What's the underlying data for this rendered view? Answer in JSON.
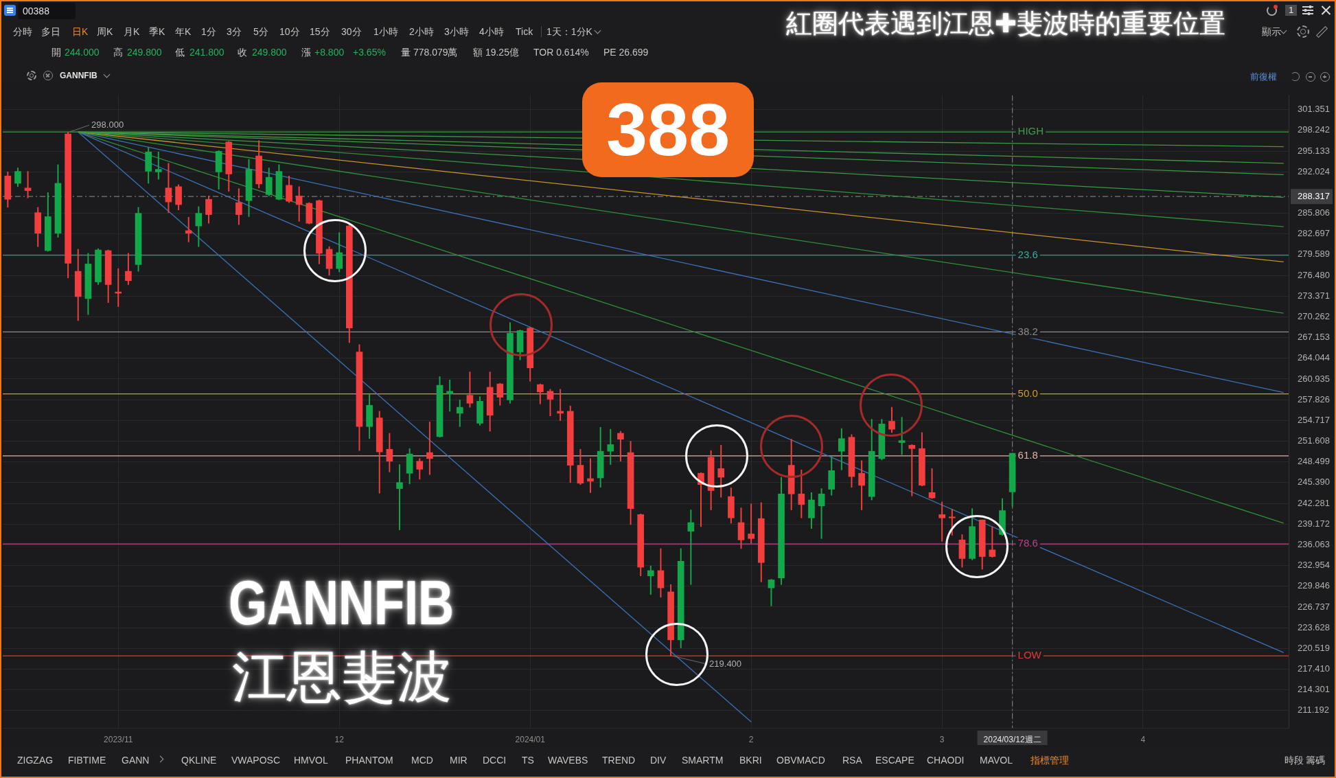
{
  "chart_data": {
    "type": "candlestick",
    "title": "388",
    "subtitle": "紅圈代表遇到江恩✚斐波時的重要位置",
    "categories": [
      null,
      null,
      null,
      null,
      null,
      null,
      null,
      null,
      null,
      null,
      null,
      "2023/11",
      null,
      null,
      null,
      null,
      null,
      null,
      null,
      null,
      null,
      null,
      null,
      null,
      null,
      null,
      null,
      null,
      null,
      null,
      null,
      null,
      null,
      "12",
      null,
      null,
      null,
      null,
      null,
      null,
      null,
      null,
      null,
      null,
      null,
      null,
      null,
      null,
      null,
      null,
      null,
      null,
      "2024/01",
      null,
      null,
      null,
      null,
      null,
      null,
      null,
      null,
      null,
      null,
      null,
      null,
      null,
      null,
      null,
      null,
      null,
      null,
      null,
      null,
      null,
      "2",
      null,
      null,
      null,
      null,
      null,
      null,
      null,
      null,
      null,
      null,
      null,
      null,
      null,
      null,
      null,
      null,
      null,
      null,
      "3",
      null,
      null,
      null,
      null,
      null,
      null,
      "2024/03/12週二",
      null,
      null,
      null,
      null,
      null,
      null,
      null,
      null,
      null,
      null,
      null,
      null,
      "4",
      null,
      null,
      null,
      null,
      null,
      null,
      null,
      null,
      null,
      null,
      null,
      null,
      null,
      null
    ],
    "ohlc": [
      [
        291.4,
        292.0,
        286.7,
        287.9
      ],
      [
        290.3,
        292.6,
        289.8,
        292.1
      ],
      [
        289.6,
        292.1,
        288.1,
        289.2
      ],
      [
        285.9,
        286.7,
        280.8,
        282.8
      ],
      [
        280.2,
        288.9,
        280.1,
        285.3
      ],
      [
        282.8,
        293.1,
        282.2,
        290.3
      ],
      [
        297.7,
        298.0,
        276.1,
        278.3
      ],
      [
        277.1,
        280.4,
        269.7,
        273.3
      ],
      [
        273.0,
        279.8,
        270.6,
        278.2
      ],
      [
        275.5,
        280.5,
        275.1,
        280.3
      ],
      [
        280.2,
        280.3,
        272.4,
        275.1
      ],
      [
        274.0,
        277.5,
        271.8,
        273.8
      ],
      [
        277.1,
        279.8,
        275.1,
        275.7
      ],
      [
        278.1,
        286.7,
        277.1,
        285.8
      ],
      [
        292.1,
        295.7,
        290.3,
        295.0
      ],
      [
        292.0,
        295.0,
        290.9,
        292.4
      ],
      [
        289.6,
        293.3,
        285.9,
        287.5
      ],
      [
        289.8,
        290.1,
        286.3,
        287.1
      ],
      [
        283.2,
        285.2,
        281.5,
        282.8
      ],
      [
        283.9,
        286.8,
        280.8,
        285.8
      ],
      [
        287.9,
        288.4,
        284.3,
        285.6
      ],
      [
        292.0,
        295.2,
        289.4,
        295.1
      ],
      [
        296.5,
        296.6,
        289.1,
        291.7
      ],
      [
        287.4,
        289.5,
        284.1,
        285.6
      ],
      [
        287.7,
        293.9,
        285.3,
        292.4
      ],
      [
        294.4,
        296.7,
        289.6,
        290.2
      ],
      [
        288.6,
        292.6,
        288.4,
        291.2
      ],
      [
        287.9,
        293.1,
        287.8,
        292.1
      ],
      [
        290.0,
        291.4,
        287.4,
        287.6
      ],
      [
        288.4,
        289.8,
        284.6,
        287.1
      ],
      [
        287.3,
        287.4,
        284.2,
        284.3
      ],
      [
        287.7,
        287.8,
        278.2,
        279.8
      ],
      [
        280.4,
        280.8,
        276.5,
        277.5
      ],
      [
        277.5,
        282.9,
        277.0,
        279.9
      ],
      [
        283.9,
        284.1,
        266.4,
        268.6
      ],
      [
        265.0,
        266.1,
        250.2,
        253.8
      ],
      [
        253.8,
        258.6,
        252.0,
        257.0
      ],
      [
        255.1,
        256.1,
        243.8,
        250.0
      ],
      [
        250.4,
        252.8,
        247.0,
        248.6
      ],
      [
        244.5,
        248.1,
        238.3,
        245.4
      ],
      [
        246.8,
        250.5,
        245.2,
        249.7
      ],
      [
        248.6,
        249.0,
        245.9,
        247.4
      ],
      [
        249.9,
        254.5,
        246.6,
        249.0
      ],
      [
        252.3,
        261.3,
        252.2,
        260.0
      ],
      [
        258.7,
        260.8,
        256.1,
        259.1
      ],
      [
        255.8,
        257.8,
        253.8,
        256.7
      ],
      [
        258.5,
        262.0,
        256.7,
        257.3
      ],
      [
        254.3,
        258.3,
        254.0,
        257.6
      ],
      [
        259.7,
        262.0,
        253.1,
        255.5
      ],
      [
        260.2,
        260.3,
        257.0,
        258.2
      ],
      [
        257.8,
        269.4,
        257.3,
        267.8
      ],
      [
        265.0,
        268.3,
        263.8,
        268.2
      ],
      [
        268.6,
        268.7,
        260.6,
        262.6
      ],
      [
        260.1,
        260.2,
        257.2,
        259.0
      ],
      [
        259.1,
        259.4,
        255.4,
        257.9
      ],
      [
        256.1,
        259.4,
        254.7,
        255.8
      ],
      [
        256.1,
        256.9,
        245.4,
        248.0
      ],
      [
        248.0,
        250.4,
        245.1,
        245.3
      ],
      [
        246.0,
        249.0,
        243.9,
        245.6
      ],
      [
        246.1,
        253.7,
        244.7,
        250.1
      ],
      [
        250.1,
        253.4,
        248.1,
        251.1
      ],
      [
        252.8,
        253.1,
        248.6,
        251.9
      ],
      [
        249.9,
        251.6,
        239.1,
        241.5
      ],
      [
        240.6,
        240.7,
        231.4,
        232.7
      ],
      [
        231.4,
        232.9,
        228.6,
        232.2
      ],
      [
        232.2,
        235.5,
        228.2,
        229.6
      ],
      [
        229.0,
        230.1,
        219.4,
        221.8
      ],
      [
        221.8,
        235.5,
        220.6,
        233.6
      ],
      [
        238.1,
        241.3,
        230.1,
        239.4
      ],
      [
        246.8,
        246.9,
        238.8,
        245.1
      ],
      [
        249.2,
        250.2,
        241.3,
        244.2
      ],
      [
        247.5,
        251.0,
        243.2,
        246.2
      ],
      [
        243.3,
        244.6,
        239.3,
        240.1
      ],
      [
        239.4,
        241.6,
        235.5,
        236.8
      ],
      [
        237.7,
        242.2,
        236.3,
        237.0
      ],
      [
        240.0,
        242.4,
        230.5,
        233.4
      ],
      [
        229.6,
        230.9,
        226.9,
        230.8
      ],
      [
        231.1,
        246.2,
        230.1,
        243.7
      ],
      [
        248.0,
        251.9,
        241.3,
        243.7
      ],
      [
        243.7,
        247.3,
        240.1,
        242.1
      ],
      [
        240.1,
        243.9,
        238.5,
        242.8
      ],
      [
        241.9,
        244.5,
        237.0,
        243.7
      ],
      [
        244.4,
        249.3,
        243.5,
        247.2
      ],
      [
        250.1,
        253.5,
        247.3,
        252.0
      ],
      [
        252.2,
        252.6,
        244.7,
        246.3
      ],
      [
        246.8,
        248.7,
        241.3,
        245.0
      ],
      [
        243.3,
        254.9,
        242.8,
        250.1
      ],
      [
        249.0,
        254.9,
        248.8,
        254.2
      ],
      [
        254.6,
        256.7,
        252.9,
        253.4
      ],
      [
        251.4,
        255.2,
        249.6,
        251.7
      ],
      [
        251.0,
        251.1,
        243.4,
        250.5
      ],
      [
        250.5,
        252.9,
        244.9,
        245.0
      ],
      [
        243.9,
        247.5,
        243.0,
        243.1
      ],
      [
        240.6,
        242.5,
        236.6,
        240.1
      ],
      [
        240.2,
        241.4,
        237.5,
        240.1
      ],
      [
        236.8,
        237.6,
        232.7,
        234.0
      ],
      [
        234.0,
        241.5,
        233.8,
        238.8
      ],
      [
        239.8,
        239.8,
        232.4,
        234.3
      ],
      [
        235.3,
        238.8,
        234.2,
        234.3
      ],
      [
        237.6,
        243.0,
        237.5,
        241.2
      ],
      [
        244.0,
        249.8,
        241.8,
        249.8
      ],
      null,
      null,
      null,
      null,
      null,
      null,
      null,
      null,
      null,
      null,
      null,
      null,
      null,
      null,
      null,
      null,
      null,
      null,
      null,
      null,
      null,
      null,
      null,
      null,
      null,
      null,
      null
    ],
    "colors": [
      "#f23e3e",
      "#13a84a",
      "#f23e3e",
      "#f23e3e",
      "#13a84a",
      "#13a84a",
      "#f23e3e",
      "#f23e3e",
      "#13a84a",
      "#13a84a",
      "#f23e3e",
      "#f23e3e",
      "#f23e3e",
      "#13a84a",
      "#13a84a",
      "#13a84a",
      "#f23e3e",
      "#f23e3e",
      "#f23e3e",
      "#13a84a",
      "#f23e3e",
      "#13a84a",
      "#f23e3e",
      "#f23e3e",
      "#13a84a",
      "#f23e3e",
      "#13a84a",
      "#13a84a",
      "#f23e3e",
      "#f23e3e",
      "#f23e3e",
      "#f23e3e",
      "#f23e3e",
      "#13a84a",
      "#f23e3e",
      "#f23e3e",
      "#13a84a",
      "#f23e3e",
      "#f23e3e",
      "#13a84a",
      "#13a84a",
      "#f23e3e",
      "#f23e3e",
      "#13a84a",
      "#13a84a",
      "#13a84a",
      "#f23e3e",
      "#13a84a",
      "#f23e3e",
      "#f23e3e",
      "#13a84a",
      "#13a84a",
      "#f23e3e",
      "#f23e3e",
      "#f23e3e",
      "#f23e3e",
      "#f23e3e",
      "#f23e3e",
      "#f23e3e",
      "#13a84a",
      "#13a84a",
      "#f23e3e",
      "#f23e3e",
      "#f23e3e",
      "#13a84a",
      "#f23e3e",
      "#f23e3e",
      "#13a84a",
      "#13a84a",
      "#f23e3e",
      "#f23e3e",
      "#f23e3e",
      "#f23e3e",
      "#f23e3e",
      "#f23e3e",
      "#f23e3e",
      "#13a84a",
      "#13a84a",
      "#f23e3e",
      "#f23e3e",
      "#13a84a",
      "#13a84a",
      "#13a84a",
      "#13a84a",
      "#f23e3e",
      "#f23e3e",
      "#13a84a",
      "#13a84a",
      "#f23e3e",
      "#13a84a",
      "#f23e3e",
      "#f23e3e",
      "#f23e3e",
      "#f23e3e",
      "#f23e3e",
      "#f23e3e",
      "#13a84a",
      "#f23e3e",
      "#f23e3e",
      "#13a84a",
      "#13a84a",
      null,
      null,
      null,
      null,
      null,
      null,
      null,
      null,
      null,
      null,
      null,
      null,
      null,
      null,
      null,
      null,
      null,
      null,
      null,
      null,
      null,
      null,
      null,
      null,
      null,
      null,
      null
    ],
    "series": [
      {
        "type": "line",
        "color": "#3c9a44",
        "values": [
          null,
          null,
          null,
          null,
          null,
          null,
          null,
          298.0,
          null,
          null,
          null,
          null,
          null,
          null,
          null,
          null,
          null,
          null,
          null,
          null,
          null,
          null,
          null,
          null,
          null,
          null,
          null,
          null,
          null,
          null,
          null,
          null,
          null,
          null,
          null,
          null,
          null,
          null,
          null,
          null,
          null,
          null,
          null,
          null,
          null,
          null,
          null,
          null,
          null,
          null,
          null,
          null,
          null,
          null,
          null,
          null,
          null,
          null,
          null,
          null,
          null,
          null,
          null,
          null,
          null,
          null,
          null,
          null,
          null,
          null,
          null,
          null,
          null,
          null,
          null,
          null,
          null,
          null,
          null,
          null,
          null,
          null,
          null,
          null,
          null,
          null,
          null,
          null,
          null,
          null,
          null,
          null,
          null,
          null,
          null,
          null,
          null,
          null,
          null,
          null,
          null,
          null,
          null,
          null,
          null,
          null,
          null,
          null,
          null,
          null,
          null,
          null,
          null,
          null,
          null,
          null,
          null,
          null,
          null,
          null,
          null,
          null,
          null,
          null,
          null,
          null,
          null,
          295.8
        ]
      },
      {
        "type": "line",
        "color": "#3c9a44",
        "values": [
          null,
          null,
          null,
          null,
          null,
          null,
          null,
          298.0,
          null,
          null,
          null,
          null,
          null,
          null,
          null,
          null,
          null,
          null,
          null,
          null,
          null,
          null,
          null,
          null,
          null,
          null,
          null,
          null,
          null,
          null,
          null,
          null,
          null,
          null,
          null,
          null,
          null,
          null,
          null,
          null,
          null,
          null,
          null,
          null,
          null,
          null,
          null,
          null,
          null,
          null,
          null,
          null,
          null,
          null,
          null,
          null,
          null,
          null,
          null,
          null,
          null,
          null,
          null,
          null,
          null,
          null,
          null,
          null,
          null,
          null,
          null,
          null,
          null,
          null,
          null,
          null,
          null,
          null,
          null,
          null,
          null,
          null,
          null,
          null,
          null,
          null,
          null,
          null,
          null,
          null,
          null,
          null,
          null,
          null,
          null,
          null,
          null,
          null,
          null,
          null,
          null,
          null,
          null,
          null,
          null,
          null,
          null,
          null,
          null,
          null,
          null,
          null,
          null,
          null,
          null,
          null,
          null,
          null,
          null,
          null,
          null,
          null,
          null,
          null,
          null,
          null,
          null,
          293.3
        ]
      },
      {
        "type": "line",
        "color": "#3c9a44",
        "values": [
          null,
          null,
          null,
          null,
          null,
          null,
          null,
          298.0,
          null,
          null,
          null,
          null,
          null,
          null,
          null,
          null,
          null,
          null,
          null,
          null,
          null,
          null,
          null,
          null,
          null,
          null,
          null,
          null,
          null,
          null,
          null,
          null,
          null,
          null,
          null,
          null,
          null,
          null,
          null,
          null,
          null,
          null,
          null,
          null,
          null,
          null,
          null,
          null,
          null,
          null,
          null,
          null,
          null,
          null,
          null,
          null,
          null,
          null,
          null,
          null,
          null,
          null,
          null,
          null,
          null,
          null,
          null,
          null,
          null,
          null,
          null,
          null,
          null,
          null,
          null,
          null,
          null,
          null,
          null,
          null,
          null,
          null,
          null,
          null,
          null,
          null,
          null,
          null,
          null,
          null,
          null,
          null,
          null,
          null,
          null,
          null,
          null,
          null,
          null,
          null,
          null,
          null,
          null,
          null,
          null,
          null,
          null,
          null,
          null,
          null,
          null,
          null,
          null,
          null,
          null,
          null,
          null,
          null,
          null,
          null,
          null,
          null,
          null,
          null,
          null,
          null,
          null,
          291.6
        ]
      },
      {
        "type": "line",
        "color": "#3c9a44",
        "values": [
          null,
          null,
          null,
          null,
          null,
          null,
          null,
          298.0,
          null,
          null,
          null,
          null,
          null,
          null,
          null,
          null,
          null,
          null,
          null,
          null,
          null,
          null,
          null,
          null,
          null,
          null,
          null,
          null,
          null,
          null,
          null,
          null,
          null,
          null,
          null,
          null,
          null,
          null,
          null,
          null,
          null,
          null,
          null,
          null,
          null,
          null,
          null,
          null,
          null,
          null,
          null,
          null,
          null,
          null,
          null,
          null,
          null,
          null,
          null,
          null,
          null,
          null,
          null,
          null,
          null,
          null,
          null,
          null,
          null,
          null,
          null,
          null,
          null,
          null,
          null,
          null,
          null,
          null,
          null,
          null,
          null,
          null,
          null,
          null,
          null,
          null,
          null,
          null,
          null,
          null,
          null,
          null,
          null,
          null,
          null,
          null,
          null,
          null,
          null,
          null,
          null,
          null,
          null,
          null,
          null,
          null,
          null,
          null,
          null,
          null,
          null,
          null,
          null,
          null,
          null,
          null,
          null,
          null,
          null,
          null,
          null,
          null,
          null,
          null,
          null,
          null,
          null,
          288.2
        ]
      },
      {
        "type": "line",
        "color": "#2f8f3a",
        "values": [
          null,
          null,
          null,
          null,
          null,
          null,
          null,
          298.0,
          null,
          null,
          null,
          null,
          null,
          null,
          null,
          null,
          null,
          null,
          null,
          null,
          null,
          null,
          null,
          null,
          null,
          null,
          null,
          null,
          null,
          null,
          null,
          null,
          null,
          null,
          null,
          null,
          null,
          null,
          null,
          null,
          null,
          null,
          null,
          null,
          null,
          null,
          null,
          null,
          null,
          null,
          null,
          null,
          null,
          null,
          null,
          null,
          null,
          null,
          null,
          null,
          null,
          null,
          null,
          null,
          null,
          null,
          null,
          null,
          null,
          null,
          null,
          null,
          null,
          null,
          null,
          null,
          null,
          null,
          null,
          null,
          null,
          null,
          null,
          null,
          null,
          null,
          null,
          null,
          null,
          null,
          null,
          null,
          null,
          null,
          null,
          null,
          null,
          null,
          null,
          null,
          null,
          null,
          null,
          null,
          null,
          null,
          null,
          null,
          null,
          null,
          null,
          null,
          null,
          null,
          null,
          null,
          null,
          null,
          null,
          null,
          null,
          null,
          null,
          null,
          null,
          null,
          null,
          283.8
        ]
      },
      {
        "type": "line",
        "color": "#c8922c",
        "values": [
          null,
          null,
          null,
          null,
          null,
          null,
          null,
          298.0,
          null,
          null,
          null,
          null,
          null,
          null,
          null,
          null,
          null,
          null,
          null,
          null,
          null,
          null,
          null,
          null,
          null,
          null,
          null,
          null,
          null,
          null,
          null,
          null,
          null,
          null,
          null,
          null,
          null,
          null,
          null,
          null,
          null,
          null,
          null,
          null,
          null,
          null,
          null,
          null,
          null,
          null,
          null,
          null,
          null,
          null,
          null,
          null,
          null,
          null,
          null,
          null,
          null,
          null,
          null,
          null,
          null,
          null,
          null,
          null,
          null,
          null,
          null,
          null,
          null,
          null,
          null,
          null,
          null,
          null,
          null,
          null,
          null,
          null,
          null,
          null,
          null,
          null,
          null,
          null,
          null,
          null,
          null,
          null,
          null,
          null,
          null,
          null,
          null,
          null,
          null,
          null,
          null,
          null,
          null,
          null,
          null,
          null,
          null,
          null,
          null,
          null,
          null,
          null,
          null,
          null,
          null,
          null,
          null,
          null,
          null,
          null,
          null,
          null,
          null,
          null,
          null,
          null,
          null,
          278.5
        ]
      },
      {
        "type": "line",
        "color": "#2f8f3a",
        "values": [
          null,
          null,
          null,
          null,
          null,
          null,
          null,
          298.0,
          null,
          null,
          null,
          null,
          null,
          null,
          null,
          null,
          null,
          null,
          null,
          null,
          null,
          null,
          null,
          null,
          null,
          null,
          null,
          null,
          null,
          null,
          null,
          null,
          null,
          null,
          null,
          null,
          null,
          null,
          null,
          null,
          null,
          null,
          null,
          null,
          null,
          null,
          null,
          null,
          null,
          null,
          null,
          null,
          null,
          null,
          null,
          null,
          null,
          null,
          null,
          null,
          null,
          null,
          null,
          null,
          null,
          null,
          null,
          null,
          null,
          null,
          null,
          null,
          null,
          null,
          null,
          null,
          null,
          null,
          null,
          null,
          null,
          null,
          null,
          null,
          null,
          null,
          null,
          null,
          null,
          null,
          null,
          null,
          null,
          null,
          null,
          null,
          null,
          null,
          null,
          null,
          null,
          null,
          null,
          null,
          null,
          null,
          null,
          null,
          null,
          null,
          null,
          null,
          null,
          null,
          null,
          null,
          null,
          null,
          null,
          null,
          null,
          null,
          null,
          null,
          null,
          null,
          null,
          270.8
        ]
      },
      {
        "type": "line",
        "color": "#3b72b8",
        "values": [
          null,
          null,
          null,
          null,
          null,
          null,
          null,
          298.0,
          null,
          null,
          null,
          null,
          null,
          null,
          null,
          null,
          null,
          null,
          null,
          null,
          null,
          null,
          null,
          null,
          null,
          null,
          null,
          null,
          null,
          null,
          null,
          null,
          null,
          null,
          null,
          null,
          null,
          null,
          null,
          null,
          null,
          null,
          null,
          null,
          null,
          null,
          null,
          null,
          null,
          null,
          null,
          null,
          null,
          null,
          null,
          null,
          null,
          null,
          null,
          null,
          null,
          null,
          null,
          null,
          null,
          null,
          null,
          null,
          null,
          null,
          null,
          null,
          null,
          null,
          null,
          null,
          null,
          null,
          null,
          null,
          null,
          null,
          null,
          null,
          null,
          null,
          null,
          null,
          null,
          null,
          null,
          null,
          null,
          null,
          null,
          null,
          null,
          null,
          null,
          null,
          null,
          null,
          null,
          null,
          null,
          null,
          null,
          null,
          null,
          null,
          null,
          null,
          null,
          null,
          null,
          null,
          null,
          null,
          null,
          null,
          null,
          null,
          null,
          null,
          null,
          null,
          null,
          258.9
        ]
      },
      {
        "type": "line",
        "color": "#2f8f3a",
        "values": [
          null,
          null,
          null,
          null,
          null,
          null,
          null,
          298.0,
          null,
          null,
          null,
          null,
          null,
          null,
          null,
          null,
          null,
          null,
          null,
          null,
          null,
          null,
          null,
          null,
          null,
          null,
          null,
          null,
          null,
          null,
          null,
          null,
          null,
          null,
          null,
          null,
          null,
          null,
          null,
          null,
          null,
          null,
          null,
          null,
          null,
          null,
          null,
          null,
          null,
          null,
          null,
          null,
          null,
          null,
          null,
          null,
          null,
          null,
          null,
          null,
          null,
          null,
          null,
          null,
          null,
          null,
          null,
          null,
          null,
          null,
          null,
          null,
          null,
          null,
          null,
          null,
          null,
          null,
          null,
          null,
          null,
          null,
          null,
          null,
          null,
          null,
          null,
          null,
          null,
          null,
          null,
          null,
          null,
          null,
          null,
          null,
          null,
          null,
          null,
          null,
          null,
          null,
          null,
          null,
          null,
          null,
          null,
          null,
          null,
          null,
          null,
          null,
          null,
          null,
          null,
          null,
          null,
          null,
          null,
          null,
          null,
          null,
          null,
          null,
          null,
          null,
          null,
          239.3
        ]
      },
      {
        "type": "line",
        "color": "#3b72b8",
        "values": [
          null,
          null,
          null,
          null,
          null,
          null,
          null,
          298.0,
          null,
          null,
          null,
          null,
          null,
          null,
          null,
          null,
          null,
          null,
          null,
          null,
          null,
          null,
          null,
          null,
          null,
          null,
          null,
          null,
          null,
          null,
          null,
          null,
          null,
          null,
          null,
          null,
          null,
          null,
          null,
          null,
          null,
          null,
          null,
          null,
          null,
          null,
          null,
          null,
          null,
          null,
          null,
          null,
          null,
          null,
          null,
          null,
          null,
          null,
          null,
          null,
          null,
          null,
          null,
          null,
          null,
          null,
          null,
          null,
          null,
          null,
          null,
          null,
          null,
          null,
          null,
          null,
          null,
          null,
          null,
          null,
          null,
          null,
          null,
          null,
          null,
          null,
          null,
          null,
          null,
          null,
          null,
          null,
          null,
          null,
          null,
          null,
          null,
          null,
          null,
          null,
          null,
          null,
          null,
          null,
          null,
          null,
          null,
          null,
          null,
          null,
          null,
          null,
          null,
          null,
          null,
          null,
          null,
          null,
          null,
          null,
          null,
          null,
          null,
          null,
          null,
          null,
          null,
          219.9
        ]
      },
      {
        "type": "line",
        "color": "#3b72b8",
        "values": [
          null,
          null,
          null,
          null,
          null,
          null,
          null,
          298.0,
          null,
          null,
          null,
          null,
          null,
          null,
          null,
          null,
          null,
          null,
          null,
          null,
          null,
          null,
          null,
          null,
          null,
          null,
          null,
          null,
          null,
          null,
          null,
          null,
          null,
          null,
          null,
          null,
          null,
          null,
          null,
          null,
          null,
          null,
          null,
          null,
          null,
          null,
          null,
          null,
          null,
          null,
          null,
          null,
          null,
          null,
          null,
          null,
          null,
          null,
          null,
          null,
          null,
          null,
          null,
          null,
          null,
          null,
          null,
          null,
          null,
          null,
          null,
          null,
          null,
          null,
          209.5,
          null,
          null,
          null,
          null,
          null,
          null,
          null,
          null,
          null,
          null,
          null,
          null,
          null,
          null,
          null,
          null,
          null,
          null,
          null,
          null,
          null,
          null,
          null,
          null,
          null,
          null,
          null,
          null,
          null,
          null,
          null,
          null,
          null,
          null,
          null,
          null,
          null,
          null,
          null,
          null,
          null,
          null,
          null,
          null,
          null,
          null,
          null,
          null,
          null,
          null,
          null,
          null,
          null
        ]
      }
    ],
    "ylim": [
      208.6,
      303.5
    ],
    "yticks": [
      301.351,
      298.242,
      295.133,
      292.024,
      285.806,
      282.697,
      279.589,
      {
        "value": 276.48,
        "label": "276.480"
      },
      273.371,
      270.262,
      267.153,
      264.044,
      260.935,
      257.826,
      254.717,
      251.608,
      248.499,
      {
        "value": 245.39,
        "label": "245.390"
      },
      242.281,
      239.172,
      236.063,
      232.954,
      229.846,
      226.737,
      223.628,
      220.519,
      {
        "value": 217.41,
        "label": "217.410"
      },
      214.301,
      211.192
    ],
    "grid": true,
    "ref_lines": [
      {
        "axis": "y",
        "value": 298.0,
        "color": "#3ca04a"
      },
      {
        "axis": "y",
        "value": 279.5,
        "color": "#2ab3a3"
      },
      {
        "axis": "y",
        "value": 268.0,
        "color": "#8c8c8c"
      },
      {
        "axis": "y",
        "value": 258.7,
        "color": "#c9a020"
      },
      {
        "axis": "y",
        "value": 249.4,
        "color": "#e6b0a8"
      },
      {
        "axis": "y",
        "value": 236.2,
        "color": "#c2408c"
      },
      {
        "axis": "y",
        "value": 219.4,
        "color": "#e53935"
      },
      {
        "axis": "y",
        "value": 288.317,
        "label": "288.317",
        "color": "#7a7a7a",
        "line_style": "dashed"
      },
      {
        "axis": "x",
        "value": "2024/03/12週二",
        "color": "#7a7a7a",
        "line_style": "dashed"
      }
    ],
    "annotations": [
      "00388",
      "分時",
      "多日",
      "日K",
      "周K",
      "月K",
      "季K",
      "年K",
      "1分",
      "3分",
      "5分",
      "10分",
      "15分",
      "30分",
      "1小時",
      "2小時",
      "3小時",
      "4小時",
      "Tick",
      "1天：1分K",
      "1",
      "顯示",
      "開",
      "244.000",
      "高",
      "249.800",
      "低",
      "241.800",
      "收",
      "249.800",
      "漲",
      "+8.800",
      "+3.65%",
      "量 778.079萬",
      "額 19.25億",
      "TOR 0.614%",
      "PE 26.699",
      "GANNFIB",
      "前復權",
      "ZIGZAG",
      "FIBTIME",
      "GANN",
      "QKLINE",
      "VWAPOSC",
      "HMVOL",
      "PHANTOM",
      "MCD",
      "MIR",
      "DCCI",
      "TS",
      "WAVEBS",
      "TREND",
      "DIV",
      "SMARTM",
      "BKRI",
      "OBVMACD",
      "RSA",
      "ESCAPE",
      "CHAODI",
      "MAVOL",
      "指標管理",
      "時段",
      "籌碼",
      "GANNFIB",
      "江恩斐波",
      {
        "text": "298.000",
        "y": 298.0
      },
      {
        "text": "219.400",
        "y": 219.4
      },
      {
        "text": "HIGH",
        "x": "2024/03/12週二",
        "y": 298.0
      },
      {
        "text": "23.6",
        "x": "2024/03/12週二",
        "y": 279.5
      },
      {
        "text": "38.2",
        "x": "2024/03/12週二",
        "y": 268.0
      },
      {
        "text": "50.0",
        "x": "2024/03/12週二",
        "y": 258.7
      },
      {
        "text": "61.8",
        "x": "2024/03/12週二",
        "y": 249.4
      },
      {
        "text": "78.6",
        "x": "2024/03/12週二",
        "y": 236.2
      },
      {
        "text": "LOW",
        "x": "2024/03/12週二",
        "y": 219.4
      }
    ]
  }
}
